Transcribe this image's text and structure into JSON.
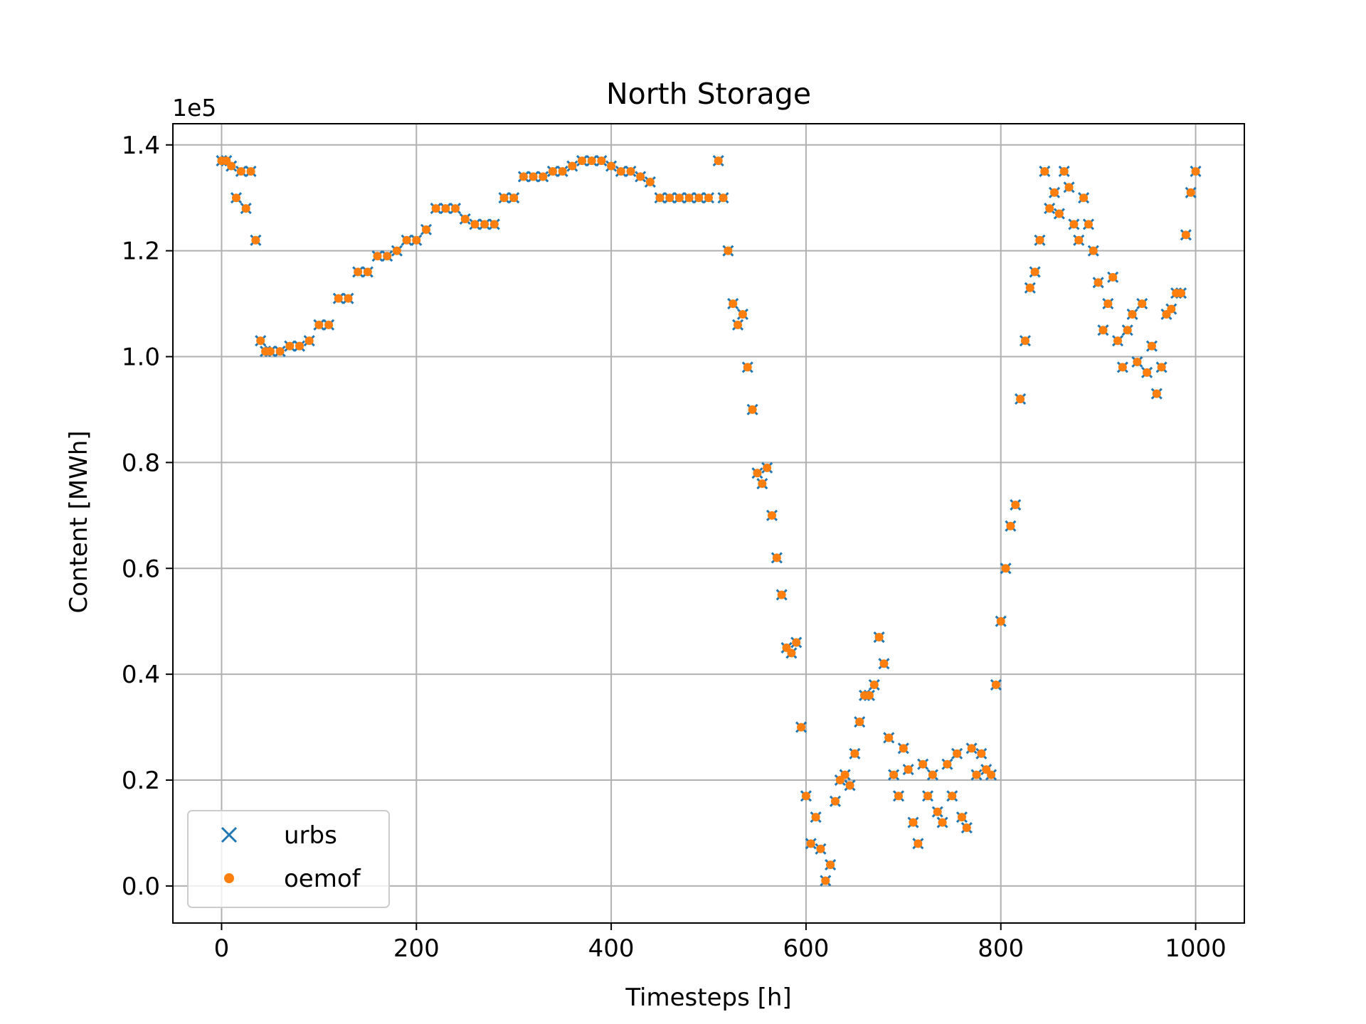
{
  "chart_data": {
    "type": "scatter",
    "title": "North Storage",
    "xlabel": "Timesteps [h]",
    "ylabel": "Content [MWh]",
    "offset_label": "1e5",
    "xlim": [
      -50,
      1050
    ],
    "ylim": [
      -0.07,
      1.44
    ],
    "y_multiplier": 100000,
    "xticks": [
      0,
      200,
      400,
      600,
      800,
      1000
    ],
    "xtick_labels": [
      "0",
      "200",
      "400",
      "600",
      "800",
      "1000"
    ],
    "yticks": [
      0.0,
      0.2,
      0.4,
      0.6,
      0.8,
      1.0,
      1.2,
      1.4
    ],
    "ytick_labels": [
      "0.0",
      "0.2",
      "0.4",
      "0.6",
      "0.8",
      "1.0",
      "1.2",
      "1.4"
    ],
    "grid": true,
    "legend_position": "lower-left",
    "series": [
      {
        "name": "urbs",
        "marker": "x",
        "color": "#1f77b4"
      },
      {
        "name": "oemof",
        "marker": "dot",
        "color": "#ff7f0e"
      }
    ],
    "x": [
      0,
      5,
      10,
      15,
      20,
      25,
      30,
      35,
      40,
      45,
      50,
      60,
      70,
      80,
      90,
      100,
      110,
      120,
      130,
      140,
      150,
      160,
      170,
      180,
      190,
      200,
      210,
      220,
      230,
      240,
      250,
      260,
      270,
      280,
      290,
      300,
      310,
      320,
      330,
      340,
      350,
      360,
      370,
      380,
      390,
      400,
      410,
      420,
      430,
      440,
      450,
      460,
      470,
      480,
      490,
      500,
      510,
      515,
      520,
      525,
      530,
      535,
      540,
      545,
      550,
      555,
      560,
      565,
      570,
      575,
      580,
      585,
      590,
      595,
      600,
      605,
      610,
      615,
      620,
      625,
      630,
      635,
      640,
      645,
      650,
      655,
      660,
      665,
      670,
      675,
      680,
      685,
      690,
      695,
      700,
      705,
      710,
      715,
      720,
      725,
      730,
      735,
      740,
      745,
      750,
      755,
      760,
      765,
      770,
      775,
      780,
      785,
      790,
      795,
      800,
      805,
      810,
      815,
      820,
      825,
      830,
      835,
      840,
      845,
      850,
      855,
      860,
      865,
      870,
      875,
      880,
      885,
      890,
      895,
      900,
      905,
      910,
      915,
      920,
      925,
      930,
      935,
      940,
      945,
      950,
      955,
      960,
      965,
      970,
      975,
      980,
      985,
      990,
      995,
      1000
    ],
    "y": [
      1.37,
      1.37,
      1.36,
      1.3,
      1.35,
      1.28,
      1.35,
      1.22,
      1.03,
      1.01,
      1.01,
      1.01,
      1.02,
      1.02,
      1.03,
      1.06,
      1.06,
      1.11,
      1.11,
      1.16,
      1.16,
      1.19,
      1.19,
      1.2,
      1.22,
      1.22,
      1.24,
      1.28,
      1.28,
      1.28,
      1.26,
      1.25,
      1.25,
      1.25,
      1.3,
      1.3,
      1.34,
      1.34,
      1.34,
      1.35,
      1.35,
      1.36,
      1.37,
      1.37,
      1.37,
      1.36,
      1.35,
      1.35,
      1.34,
      1.33,
      1.3,
      1.3,
      1.3,
      1.3,
      1.3,
      1.3,
      1.37,
      1.3,
      1.2,
      1.1,
      1.06,
      1.08,
      0.98,
      0.9,
      0.78,
      0.76,
      0.79,
      0.7,
      0.62,
      0.55,
      0.45,
      0.44,
      0.46,
      0.3,
      0.17,
      0.08,
      0.13,
      0.07,
      0.01,
      0.04,
      0.16,
      0.2,
      0.21,
      0.19,
      0.25,
      0.31,
      0.36,
      0.36,
      0.38,
      0.47,
      0.42,
      0.28,
      0.21,
      0.17,
      0.26,
      0.22,
      0.12,
      0.08,
      0.23,
      0.17,
      0.21,
      0.14,
      0.12,
      0.23,
      0.17,
      0.25,
      0.13,
      0.11,
      0.26,
      0.21,
      0.25,
      0.22,
      0.21,
      0.38,
      0.5,
      0.6,
      0.68,
      0.72,
      0.92,
      1.03,
      1.13,
      1.16,
      1.22,
      1.35,
      1.28,
      1.31,
      1.27,
      1.35,
      1.32,
      1.25,
      1.22,
      1.3,
      1.25,
      1.2,
      1.14,
      1.05,
      1.1,
      1.15,
      1.03,
      0.98,
      1.05,
      1.08,
      0.99,
      1.1,
      0.97,
      1.02,
      0.93,
      0.98,
      1.08,
      1.09,
      1.12,
      1.12,
      1.23,
      1.31,
      1.35
    ]
  }
}
